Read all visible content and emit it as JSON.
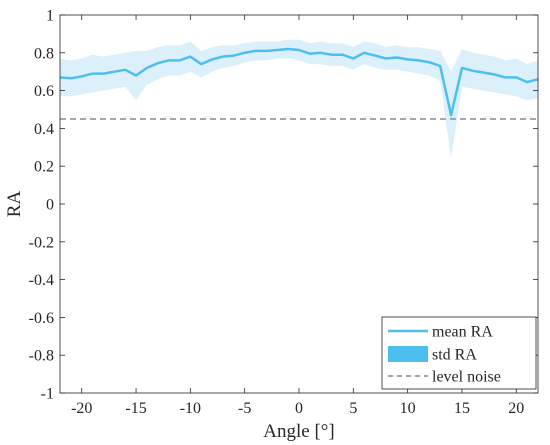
{
  "chart_data": {
    "type": "line",
    "title": "",
    "xlabel": "Angle [°]",
    "ylabel": "RA",
    "xlim": [
      -22,
      22
    ],
    "ylim": [
      -1,
      1
    ],
    "grid": false,
    "legend_position": "bottom-right",
    "x_ticks": [
      -20,
      -15,
      -10,
      -5,
      0,
      5,
      10,
      15,
      20
    ],
    "x_tick_labels": [
      "-20",
      "-15",
      "-10",
      "-5",
      "0",
      "5",
      "10",
      "15",
      "20"
    ],
    "y_ticks": [
      -1,
      -0.8,
      -0.6,
      -0.4,
      -0.2,
      0,
      0.2,
      0.4,
      0.6,
      0.8,
      1
    ],
    "y_tick_labels": [
      "-1",
      "-0.8",
      "-0.6",
      "-0.4",
      "-0.2",
      "0",
      "0.2",
      "0.4",
      "0.6",
      "0.8",
      "1"
    ],
    "series": [
      {
        "name": "mean RA",
        "kind": "line",
        "color": "#4dbeee",
        "x": [
          -22,
          -21,
          -20,
          -19,
          -18,
          -17,
          -16,
          -15,
          -14,
          -13,
          -12,
          -11,
          -10,
          -9,
          -8,
          -7,
          -6,
          -5,
          -4,
          -3,
          -2,
          -1,
          0,
          1,
          2,
          3,
          4,
          5,
          6,
          7,
          8,
          9,
          10,
          11,
          12,
          13,
          14,
          15,
          16,
          17,
          18,
          19,
          20,
          21,
          22
        ],
        "y": [
          0.67,
          0.665,
          0.675,
          0.69,
          0.69,
          0.7,
          0.71,
          0.68,
          0.72,
          0.745,
          0.76,
          0.76,
          0.78,
          0.74,
          0.765,
          0.78,
          0.785,
          0.8,
          0.81,
          0.81,
          0.815,
          0.82,
          0.815,
          0.795,
          0.8,
          0.79,
          0.79,
          0.77,
          0.8,
          0.785,
          0.77,
          0.775,
          0.765,
          0.76,
          0.75,
          0.73,
          0.47,
          0.72,
          0.705,
          0.695,
          0.685,
          0.67,
          0.67,
          0.645,
          0.66
        ]
      },
      {
        "name": "std RA",
        "kind": "band",
        "color": "#4dbeee",
        "fill": "#dbf0fa",
        "x": [
          -22,
          -21,
          -20,
          -19,
          -18,
          -17,
          -16,
          -15,
          -14,
          -13,
          -12,
          -11,
          -10,
          -9,
          -8,
          -7,
          -6,
          -5,
          -4,
          -3,
          -2,
          -1,
          0,
          1,
          2,
          3,
          4,
          5,
          6,
          7,
          8,
          9,
          10,
          11,
          12,
          13,
          14,
          15,
          16,
          17,
          18,
          19,
          20,
          21,
          22
        ],
        "lower": [
          0.57,
          0.57,
          0.58,
          0.59,
          0.6,
          0.61,
          0.62,
          0.55,
          0.63,
          0.66,
          0.68,
          0.68,
          0.7,
          0.67,
          0.7,
          0.72,
          0.73,
          0.75,
          0.76,
          0.76,
          0.77,
          0.77,
          0.76,
          0.74,
          0.74,
          0.73,
          0.73,
          0.71,
          0.74,
          0.72,
          0.71,
          0.71,
          0.7,
          0.69,
          0.68,
          0.65,
          0.24,
          0.62,
          0.61,
          0.6,
          0.59,
          0.58,
          0.57,
          0.55,
          0.56
        ],
        "upper": [
          0.77,
          0.76,
          0.77,
          0.79,
          0.78,
          0.79,
          0.8,
          0.81,
          0.81,
          0.83,
          0.84,
          0.84,
          0.86,
          0.81,
          0.83,
          0.84,
          0.84,
          0.85,
          0.86,
          0.86,
          0.86,
          0.87,
          0.87,
          0.85,
          0.86,
          0.85,
          0.85,
          0.83,
          0.86,
          0.85,
          0.83,
          0.84,
          0.83,
          0.83,
          0.82,
          0.81,
          0.7,
          0.82,
          0.8,
          0.79,
          0.78,
          0.76,
          0.77,
          0.74,
          0.76
        ]
      },
      {
        "name": "level noise",
        "kind": "hline",
        "color": "#8c8c8c",
        "y": 0.45
      }
    ]
  }
}
